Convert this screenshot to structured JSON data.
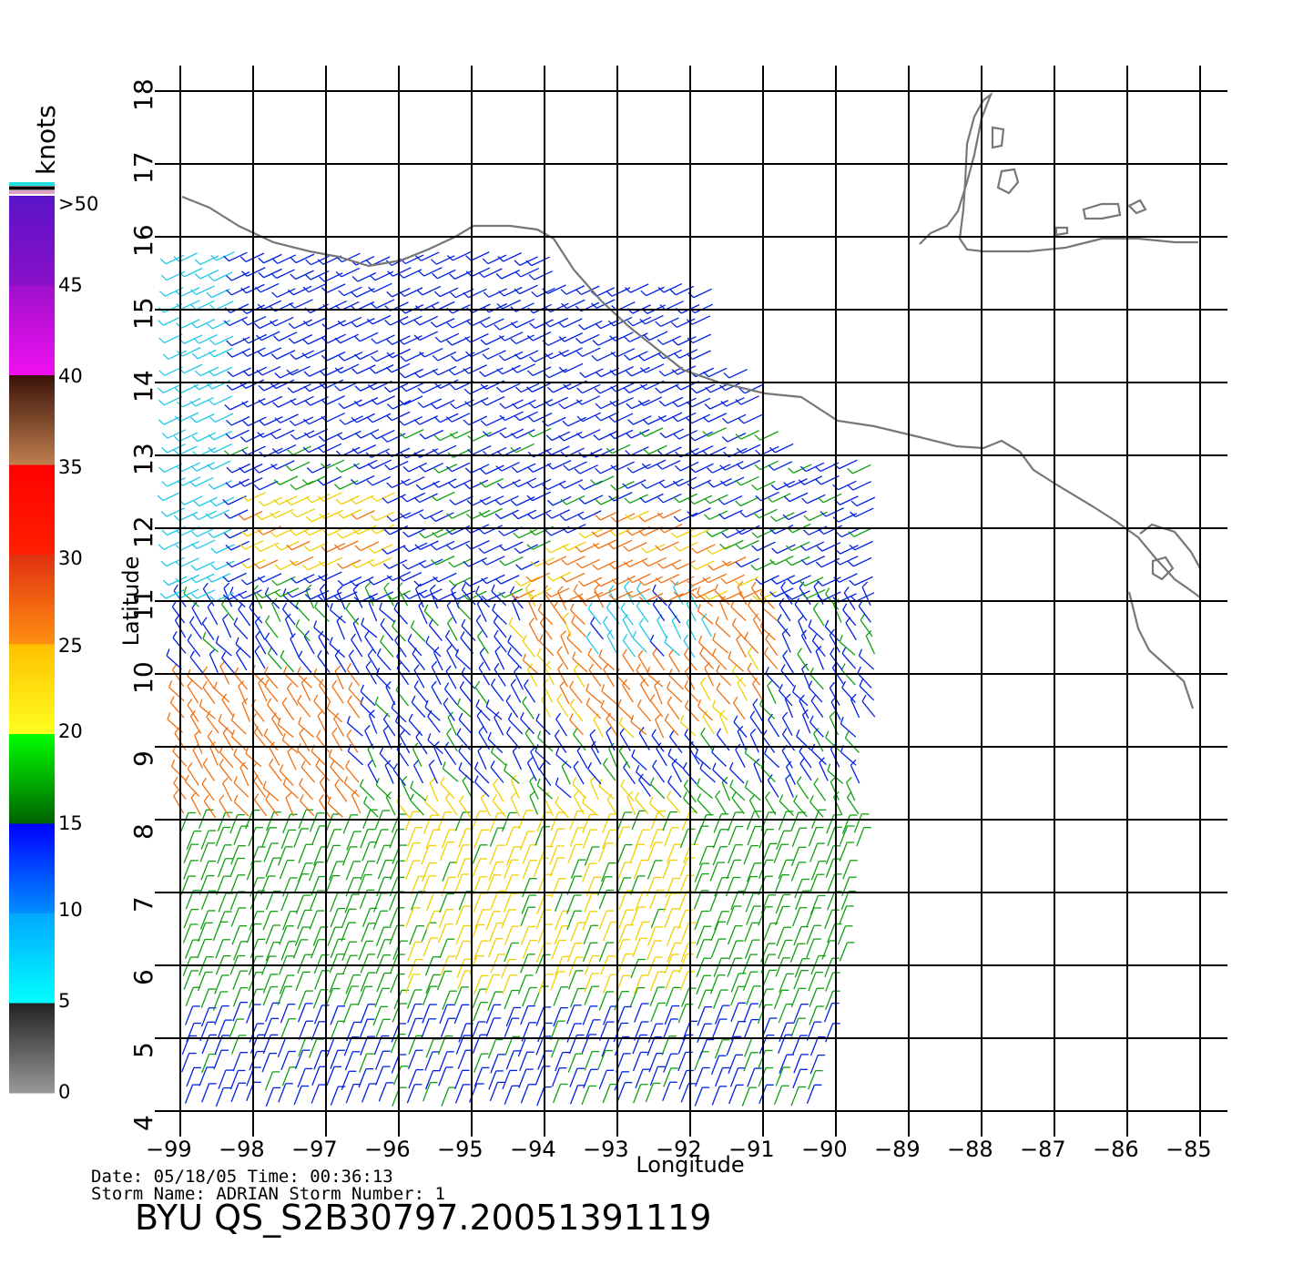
{
  "map": {
    "lon_ticks": [
      -99,
      -98,
      -97,
      -96,
      -95,
      -94,
      -93,
      -92,
      -91,
      -90,
      -89,
      -88,
      -87,
      -86,
      -85
    ],
    "lat_ticks": [
      4,
      5,
      6,
      7,
      8,
      9,
      10,
      11,
      12,
      13,
      14,
      15,
      16,
      17,
      18
    ],
    "lon_range": [
      -99,
      -85
    ],
    "lat_range": [
      4,
      18
    ],
    "xlabel": "Longitude",
    "ylabel": "Latitude",
    "grid": true,
    "coastline_color": "#777777",
    "grid_color": "#000000"
  },
  "colorbar": {
    "title": "knots",
    "labels": [
      ">50",
      "45",
      "40",
      "35",
      "30",
      "25",
      "20",
      "15",
      "10",
      "5",
      "0"
    ],
    "bands": [
      {
        "from": 45,
        "to": 50,
        "top": "#5a14c8",
        "bottom": "#8a10c8"
      },
      {
        "from": 40,
        "to": 45,
        "top": "#a010cc",
        "bottom": "#f010f0"
      },
      {
        "from": 35,
        "to": 40,
        "top": "#3a1208",
        "bottom": "#c08050"
      },
      {
        "from": 30,
        "to": 35,
        "top": "#ff0000",
        "bottom": "#ff2000"
      },
      {
        "from": 25,
        "to": 30,
        "top": "#e03010",
        "bottom": "#ff9010"
      },
      {
        "from": 20,
        "to": 25,
        "top": "#ffc000",
        "bottom": "#ffff20"
      },
      {
        "from": 15,
        "to": 20,
        "top": "#00ff00",
        "bottom": "#006000"
      },
      {
        "from": 10,
        "to": 15,
        "top": "#0000ff",
        "bottom": "#0090ff"
      },
      {
        "from": 5,
        "to": 10,
        "top": "#00a8ff",
        "bottom": "#00ffff"
      },
      {
        "from": 0,
        "to": 5,
        "top": "#222222",
        "bottom": "#999999"
      }
    ],
    "top_stripes": [
      "#20e0e0",
      "#000000",
      "#e0a0c0"
    ]
  },
  "info": {
    "date_line": "Date: 05/18/05   Time: 00:36:13",
    "storm_line": "Storm Name: ADRIAN   Storm Number: 1",
    "title": "BYU QS_S2B30797.20051391119"
  },
  "wind_colors": {
    "calm": "#333333",
    "light": "#20c8e8",
    "moderate": "#0020e0",
    "fresh": "#10a010",
    "strong": "#f0d000",
    "gale": "#f07010",
    "storm": "#d02000"
  }
}
